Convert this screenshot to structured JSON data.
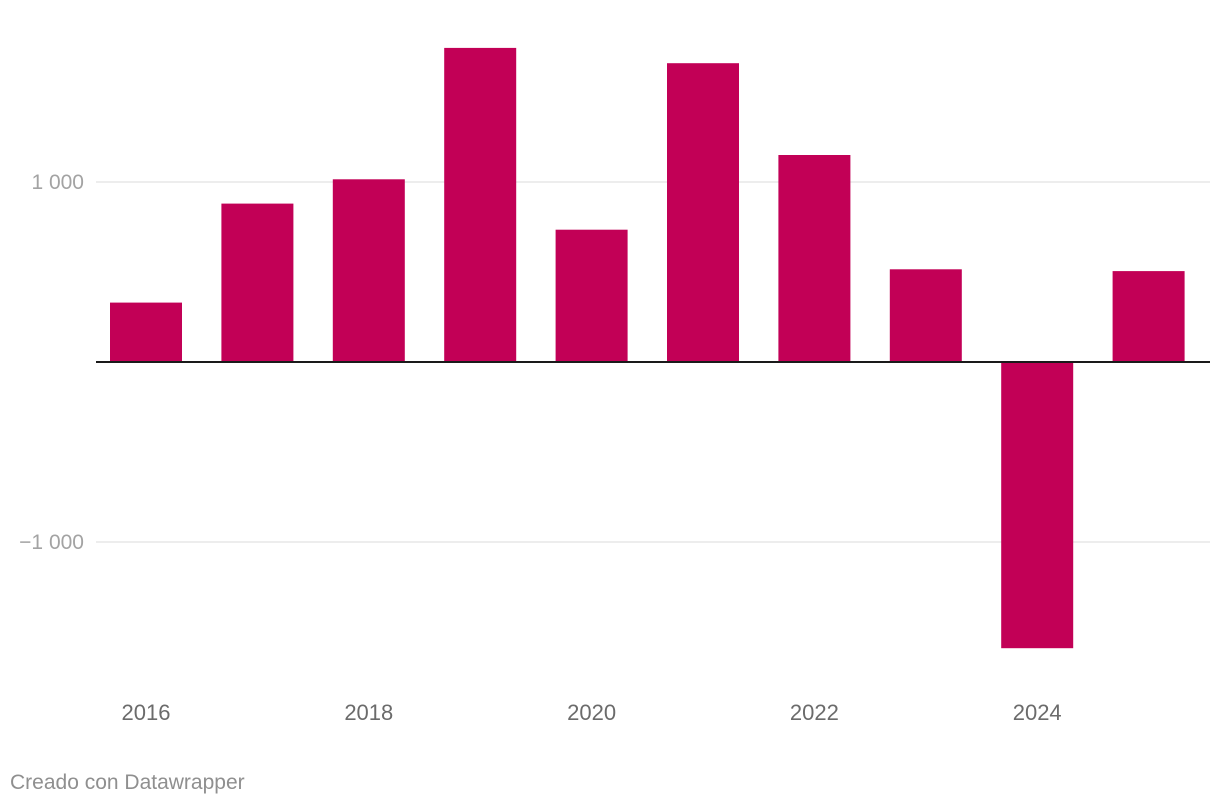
{
  "chart_data": {
    "type": "bar",
    "title": "",
    "xlabel": "",
    "ylabel": "",
    "categories": [
      "2016",
      "2017",
      "2018",
      "2019",
      "2020",
      "2021",
      "2022",
      "2023",
      "2024",
      "2025"
    ],
    "values": [
      330,
      880,
      1015,
      1745,
      735,
      1660,
      1150,
      515,
      -1590,
      505
    ],
    "ylim": [
      -1750,
      1950
    ],
    "y_ticks": [
      -1000,
      1000
    ],
    "y_tick_labels": [
      "−1 000",
      "1 000"
    ],
    "x_tick_labels": [
      "2016",
      "2018",
      "2020",
      "2022",
      "2024"
    ],
    "grid": true,
    "legend": "none",
    "bar_color": "#c20056"
  },
  "footer": {
    "credit": "Creado con Datawrapper"
  }
}
